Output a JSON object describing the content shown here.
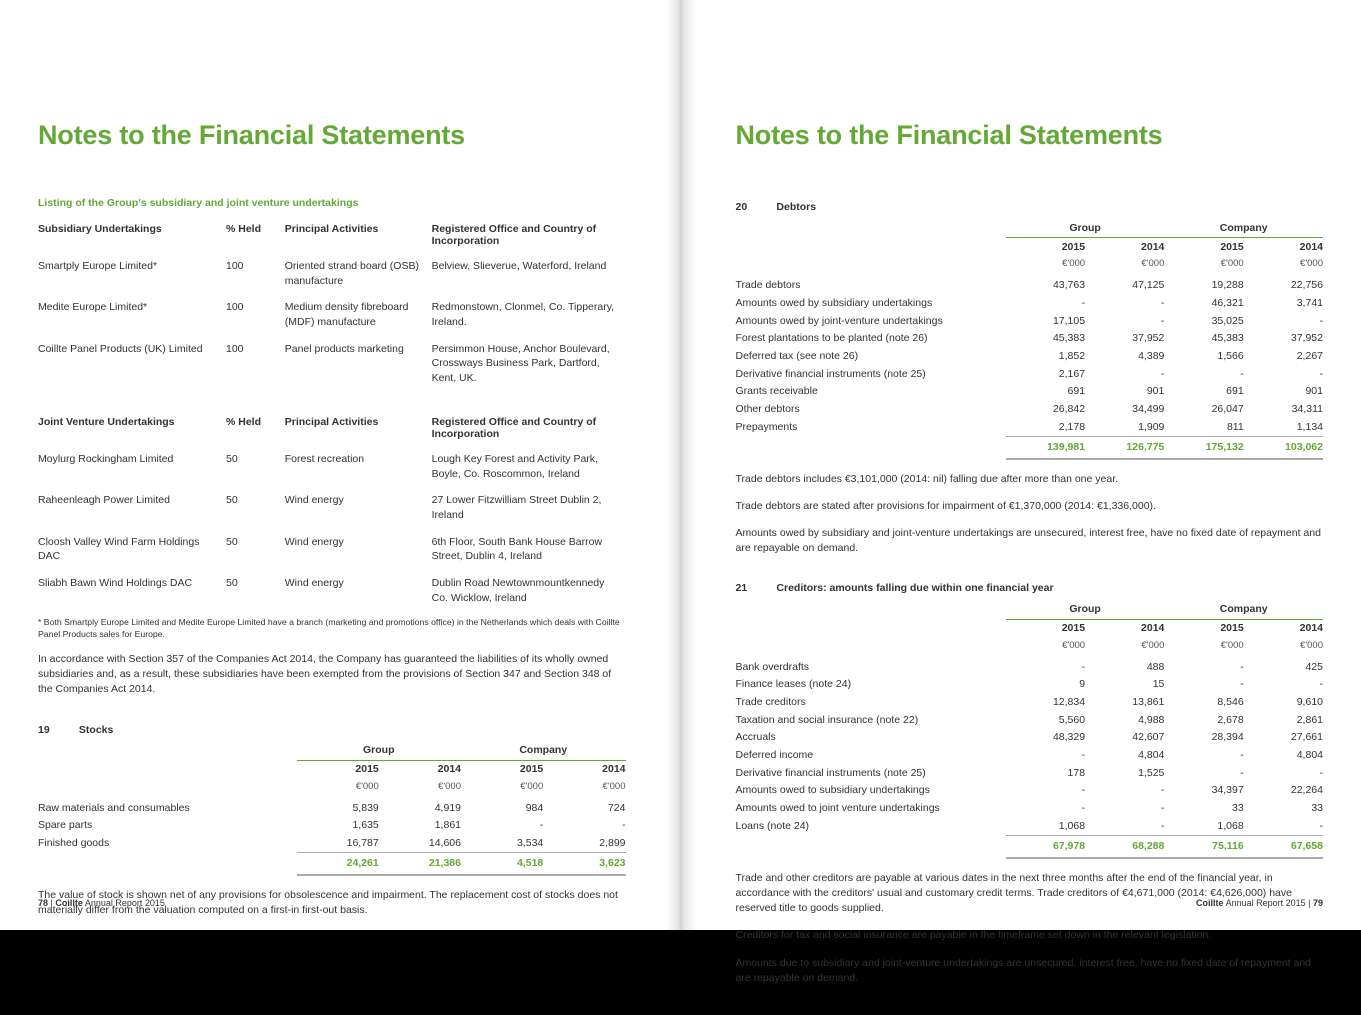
{
  "colors": {
    "accent": "#64a836",
    "text": "#333333",
    "rule": "#64a836"
  },
  "title": "Notes to the Financial Statements",
  "left": {
    "listingLabel": "Listing of the Group's subsidiary and joint venture undertakings",
    "subsHeader": [
      "Subsidiary Undertakings",
      "% Held",
      "Principal Activities",
      "Registered Office and Country of Incorporation"
    ],
    "subs": [
      [
        "Smartply Europe Limited*",
        "100",
        "Oriented strand board (OSB) manufacture",
        "Belview, Slieverue, Waterford, Ireland"
      ],
      [
        "Medite Europe Limited*",
        "100",
        "Medium density fibreboard (MDF) manufacture",
        "Redmonstown, Clonmel, Co. Tipperary, Ireland."
      ],
      [
        "Coillte Panel Products (UK) Limited",
        "100",
        "Panel products marketing",
        "Persimmon House, Anchor Boulevard, Crossways Business Park, Dartford, Kent, UK."
      ]
    ],
    "jvHeader": [
      "Joint Venture Undertakings",
      "% Held",
      "Principal Activities",
      "Registered Office and Country of Incorporation"
    ],
    "jvs": [
      [
        "Moylurg Rockingham Limited",
        "50",
        "Forest recreation",
        "Lough Key Forest and Activity Park, Boyle, Co. Roscommon, Ireland"
      ],
      [
        "Raheenleagh Power Limited",
        "50",
        "Wind energy",
        "27 Lower Fitzwilliam Street Dublin 2, Ireland"
      ],
      [
        "Cloosh Valley Wind Farm Holdings DAC",
        "50",
        "Wind energy",
        "6th Floor, South Bank House Barrow Street, Dublin 4, Ireland"
      ],
      [
        "Sliabh Bawn Wind Holdings DAC",
        "50",
        "Wind energy",
        "Dublin Road Newtownmountkennedy Co. Wicklow, Ireland"
      ]
    ],
    "footnote": "* Both Smartply Europe Limited and Medite Europe Limited have a branch (marketing and promotions office) in the Netherlands which deals with Coillte Panel Products sales for Europe.",
    "para1": "In accordance with Section 357 of the Companies Act 2014, the Company has guaranteed the liabilities of its wholly owned subsidiaries and, as a result, these subsidiaries have been exempted from the provisions of Section 347 and Section 348 of the Companies Act 2014.",
    "note19": {
      "num": "19",
      "title": "Stocks"
    },
    "groupLabel": "Group",
    "companyLabel": "Company",
    "yearA": "2015",
    "yearB": "2014",
    "unit": "€'000",
    "stocks": {
      "rows": [
        [
          "Raw materials and consumables",
          "5,839",
          "4,919",
          "984",
          "724"
        ],
        [
          "Spare parts",
          "1,635",
          "1,861",
          "-",
          "-"
        ],
        [
          "Finished goods",
          "16,787",
          "14,606",
          "3,534",
          "2,899"
        ]
      ],
      "total": [
        "",
        "24,261",
        "21,386",
        "4,518",
        "3,623"
      ]
    },
    "para2": "The value of stock is shown net of any provisions for obsolescence and impairment. The replacement cost of stocks does not materially differ from the valuation computed on a first-in first-out basis.",
    "pageNum": "78",
    "pageLabelA": "Coillte",
    "pageLabelB": " Annual Report 2015"
  },
  "right": {
    "note20": {
      "num": "20",
      "title": "Debtors"
    },
    "debtors": {
      "rows": [
        [
          "Trade debtors",
          "43,763",
          "47,125",
          "19,288",
          "22,756"
        ],
        [
          "Amounts owed by subsidiary undertakings",
          "-",
          "-",
          "46,321",
          "3,741"
        ],
        [
          "Amounts owed by joint-venture undertakings",
          "17,105",
          "-",
          "35,025",
          "-"
        ],
        [
          "Forest plantations to be planted (note 26)",
          "45,383",
          "37,952",
          "45,383",
          "37,952"
        ],
        [
          "Deferred tax (see note 26)",
          "1,852",
          "4,389",
          "1,566",
          "2,267"
        ],
        [
          "Derivative financial instruments (note 25)",
          "2,167",
          "-",
          "-",
          "-"
        ],
        [
          "Grants receivable",
          "691",
          "901",
          "691",
          "901"
        ],
        [
          "Other debtors",
          "26,842",
          "34,499",
          "26,047",
          "34,311"
        ],
        [
          "Prepayments",
          "2,178",
          "1,909",
          "811",
          "1,134"
        ]
      ],
      "total": [
        "",
        "139,981",
        "126,775",
        "175,132",
        "103,062"
      ]
    },
    "p20a": "Trade debtors includes €3,101,000 (2014: nil) falling due after more than one year.",
    "p20b": "Trade debtors are stated after provisions for impairment of €1,370,000 (2014: €1,336,000).",
    "p20c": "Amounts owed by subsidiary and joint-venture undertakings are unsecured, interest free, have no fixed date of repayment and are repayable on demand.",
    "note21": {
      "num": "21",
      "title": "Creditors: amounts falling due within one financial year"
    },
    "creditors": {
      "rows": [
        [
          "Bank overdrafts",
          "-",
          "488",
          "-",
          "425"
        ],
        [
          "Finance leases (note 24)",
          "9",
          "15",
          "-",
          "-"
        ],
        [
          "Trade creditors",
          "12,834",
          "13,861",
          "8,546",
          "9,610"
        ],
        [
          "Taxation and social insurance (note 22)",
          "5,560",
          "4,988",
          "2,678",
          "2,861"
        ],
        [
          "Accruals",
          "48,329",
          "42,607",
          "28,394",
          "27,661"
        ],
        [
          "Deferred income",
          "-",
          "4,804",
          "-",
          "4,804"
        ],
        [
          "Derivative financial instruments (note 25)",
          "178",
          "1,525",
          "-",
          "-"
        ],
        [
          "Amounts owed to subsidiary undertakings",
          "-",
          "-",
          "34,397",
          "22,264"
        ],
        [
          "Amounts owed to joint venture undertakings",
          "-",
          "-",
          "33",
          "33"
        ],
        [
          "Loans (note 24)",
          "1,068",
          "-",
          "1,068",
          "-"
        ]
      ],
      "total": [
        "",
        "67,978",
        "68,288",
        "75,116",
        "67,658"
      ]
    },
    "p21a": "Trade and other creditors are payable at various dates in the next three months after the end of the financial year, in accordance with the creditors' usual and customary credit terms. Trade creditors of €4,671,000 (2014: €4,626,000) have reserved title to goods supplied.",
    "p21b": "Creditors for tax and social insurance are payable in the timeframe set down in the relevant legislation.",
    "p21c": "Amounts due to subsidiary and joint-venture undertakings are unsecured, interest free, have no fixed date of repayment and are repayable on demand.",
    "pageNum": "79",
    "pageLabelA": "Coillte",
    "pageLabelB": " Annual Report 2015"
  }
}
